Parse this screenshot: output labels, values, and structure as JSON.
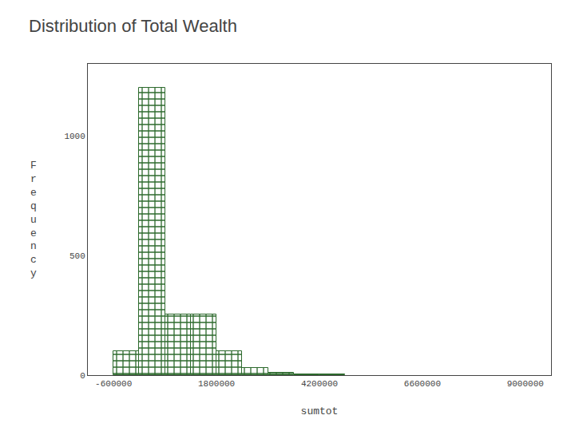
{
  "chart_data": {
    "type": "histogram",
    "title": "Distribution of Total Wealth",
    "x_label": "sumtot",
    "y_label": "F\nr\ne\nq\nu\ne\nn\nc\ny",
    "bins": [
      -1200000,
      -600000,
      0,
      600000,
      1200000,
      1800000,
      2400000,
      3000000,
      3600000,
      4200000,
      4800000
    ],
    "counts": [
      0,
      100,
      1200,
      255,
      255,
      100,
      30,
      10,
      5,
      2
    ],
    "color": "#2d6a2d",
    "xlim": [
      -1200000,
      9600000
    ],
    "xticks": [
      -600000,
      1800000,
      4200000,
      6600000,
      9000000
    ],
    "ylim": [
      0,
      1300
    ],
    "yticks": [
      0,
      500,
      1000
    ],
    "grid": false
  }
}
